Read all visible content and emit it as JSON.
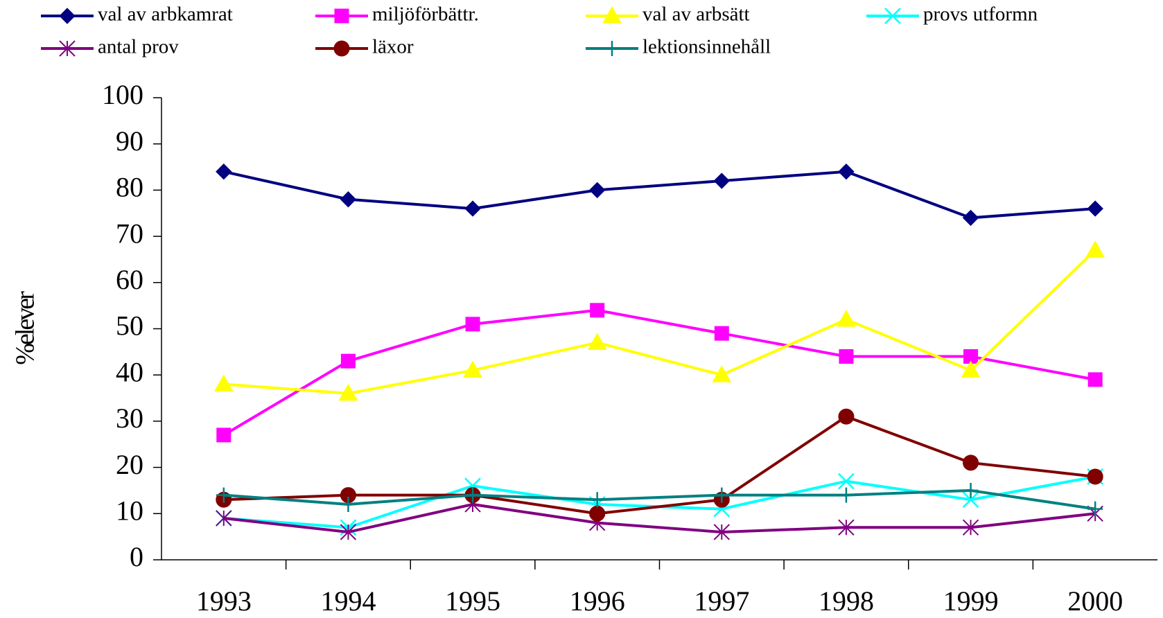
{
  "chart_data": {
    "type": "line",
    "y_label": "%elever",
    "categories": [
      "1993",
      "1994",
      "1995",
      "1996",
      "1997",
      "1998",
      "1999",
      "2000"
    ],
    "ylim": [
      0,
      100
    ],
    "yticks": [
      0,
      10,
      20,
      30,
      40,
      50,
      60,
      70,
      80,
      90,
      100
    ],
    "series": [
      {
        "name": "val av arbkamrat",
        "color": "#000080",
        "marker": "diamond",
        "values": [
          84,
          78,
          76,
          80,
          82,
          84,
          74,
          76
        ]
      },
      {
        "name": "miljöförbättr.",
        "color": "#ff00ff",
        "marker": "square",
        "values": [
          27,
          43,
          51,
          54,
          49,
          44,
          44,
          39
        ]
      },
      {
        "name": "val av arbsätt",
        "color": "#ffff00",
        "marker": "triangle",
        "values": [
          38,
          36,
          41,
          47,
          40,
          52,
          41,
          67
        ]
      },
      {
        "name": "provs utformn",
        "color": "#00ffff",
        "marker": "x",
        "values": [
          9,
          7,
          16,
          12,
          11,
          17,
          13,
          18
        ]
      },
      {
        "name": "antal prov",
        "color": "#800080",
        "marker": "star",
        "values": [
          9,
          6,
          12,
          8,
          6,
          7,
          7,
          10
        ]
      },
      {
        "name": "läxor",
        "color": "#800000",
        "marker": "circle",
        "values": [
          13,
          14,
          14,
          10,
          13,
          31,
          21,
          18
        ]
      },
      {
        "name": "lektionsinnehåll",
        "color": "#008080",
        "marker": "plus",
        "values": [
          14,
          12,
          14,
          13,
          14,
          14,
          15,
          11
        ]
      }
    ]
  }
}
